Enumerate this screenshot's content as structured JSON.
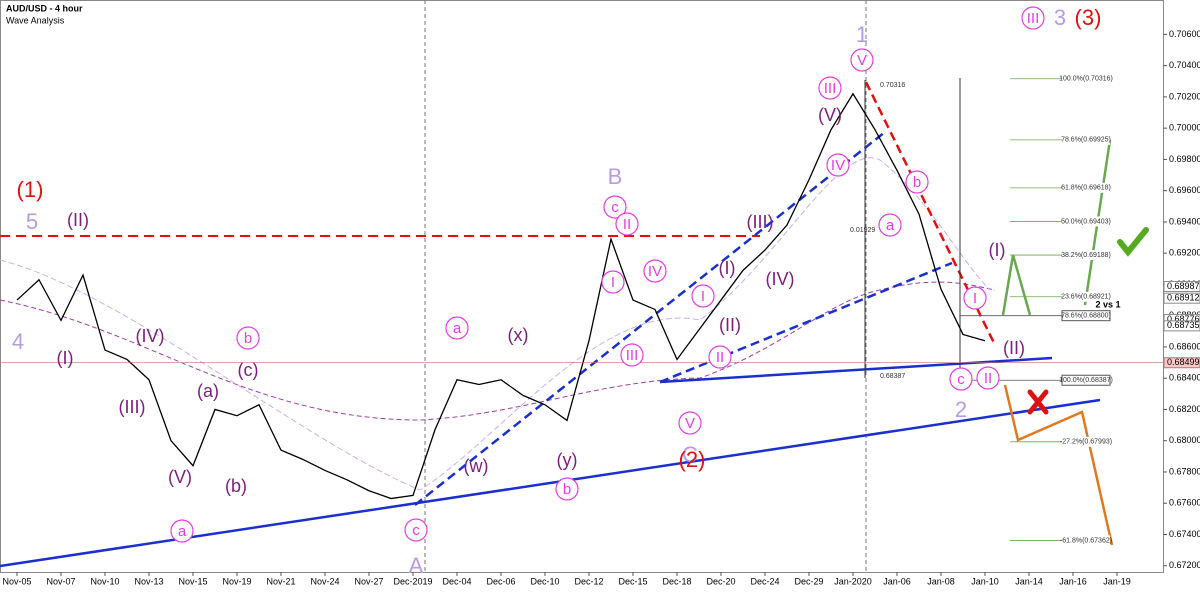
{
  "chart_data": {
    "type": "line",
    "title": "AUD/USD - 4 hour",
    "subtitle": "Wave Analysis",
    "categories": [
      "Nov-05",
      null,
      "Nov-07",
      null,
      "Nov-10",
      null,
      "Nov-13",
      null,
      "Nov-15",
      null,
      "Nov-19",
      null,
      "Nov-21",
      null,
      "Nov-24",
      null,
      "Nov-27",
      null,
      "Dec-2019",
      null,
      "Dec-04",
      null,
      "Dec-06",
      null,
      "Dec-10",
      null,
      "Dec-12",
      null,
      "Dec-15",
      null,
      "Dec-18",
      null,
      "Dec-20",
      null,
      "Dec-24",
      null,
      "Dec-29",
      null,
      "Jan-2020",
      null,
      "Jan-06",
      null,
      "Jan-08",
      null,
      "Jan-10",
      null,
      "Jan-14",
      null,
      "Jan-16",
      null,
      "Jan-19"
    ],
    "series": [
      {
        "color": "#000000",
        "values": [
          0.689,
          0.6903,
          0.6877,
          0.6906,
          0.6858,
          0.6852,
          0.6839,
          0.68,
          0.6784,
          0.682,
          0.6816,
          0.6823,
          0.6794,
          0.6788,
          0.6781,
          0.6775,
          0.6768,
          0.6763,
          0.6765,
          0.6807,
          0.6839,
          0.6836,
          0.6839,
          0.6829,
          0.6823,
          0.6813,
          0.6864,
          0.6929,
          0.689,
          0.6884,
          0.6852,
          0.6871,
          0.689,
          0.6909,
          0.6922,
          0.6938,
          0.6967,
          0.6999,
          0.7022,
          0.6999,
          0.6973,
          0.6945,
          0.6897,
          0.6868,
          0.6864,
          null,
          null,
          null,
          null,
          null,
          null
        ]
      }
    ],
    "ylim": [
      0.6716,
      0.7082
    ],
    "yticks": [
      {
        "value": 0.706,
        "label": "0.70600"
      },
      {
        "value": 0.704,
        "label": "0.70400"
      },
      {
        "value": 0.702,
        "label": "0.70200"
      },
      {
        "value": 0.7,
        "label": "0.70000"
      },
      {
        "value": 0.698,
        "label": "0.69800"
      },
      {
        "value": 0.696,
        "label": "0.69600"
      },
      {
        "value": 0.694,
        "label": "0.69400"
      },
      {
        "value": 0.692,
        "label": "0.69200"
      },
      {
        "value": 0.69,
        "label": "0.69000"
      },
      {
        "value": 0.688,
        "label": "0.68800"
      },
      {
        "value": 0.686,
        "label": "0.68600"
      },
      {
        "value": 0.684,
        "label": "0.68400"
      },
      {
        "value": 0.682,
        "label": "0.68200"
      },
      {
        "value": 0.68,
        "label": "0.68000"
      },
      {
        "value": 0.678,
        "label": "0.67800"
      },
      {
        "value": 0.676,
        "label": "0.67600"
      },
      {
        "value": 0.674,
        "label": "0.67400"
      },
      {
        "value": 0.672,
        "label": "0.67200"
      }
    ],
    "price_tags": [
      0.68987,
      0.68912,
      0.68776,
      0.68735
    ],
    "current_price": 0.68499,
    "fib_levels": [
      {
        "label": "100.0%(0.70316)",
        "price": 0.70316
      },
      {
        "label": "78.6%(0.69925)",
        "price": 0.69925
      },
      {
        "label": "61.8%(0.69618)",
        "price": 0.69618
      },
      {
        "label": "50.0%(0.69403)",
        "price": 0.69403
      },
      {
        "label": "38.2%(0.69188)",
        "price": 0.69188
      },
      {
        "label": "23.6%(0.68921)",
        "price": 0.68921
      },
      {
        "label": "78.6%(0.68800)",
        "price": 0.688
      },
      {
        "label": "100.0%(0.68387)",
        "price": 0.68387
      },
      {
        "label": "-27.2%(0.67993)",
        "price": 0.67993
      },
      {
        "label": "-61.8%(0.67362)",
        "price": 0.67362
      }
    ],
    "measure_labels": [
      0.70316,
      0.01929,
      0.68387
    ],
    "annotations": [
      "(1)",
      "5",
      "(II)",
      "4",
      "(I)",
      "(IV)",
      "(III)",
      "(V)",
      "a",
      "(a)",
      "(b)",
      "(c)",
      "b",
      "a",
      "(x)",
      "(w)",
      "(y)",
      "b",
      "c",
      "A",
      "B",
      "c",
      "II",
      "I",
      "IV",
      "III",
      "I",
      "V",
      "C",
      "(2)",
      "II",
      "(II)",
      "(I)",
      "(III)",
      "(IV)",
      "(V)",
      "III",
      "IV",
      "V",
      "1",
      "b",
      "a",
      "(I)",
      "I",
      "(II)",
      "c",
      "II",
      "2",
      "III",
      "3",
      "(3)",
      "2 vs 1"
    ]
  }
}
